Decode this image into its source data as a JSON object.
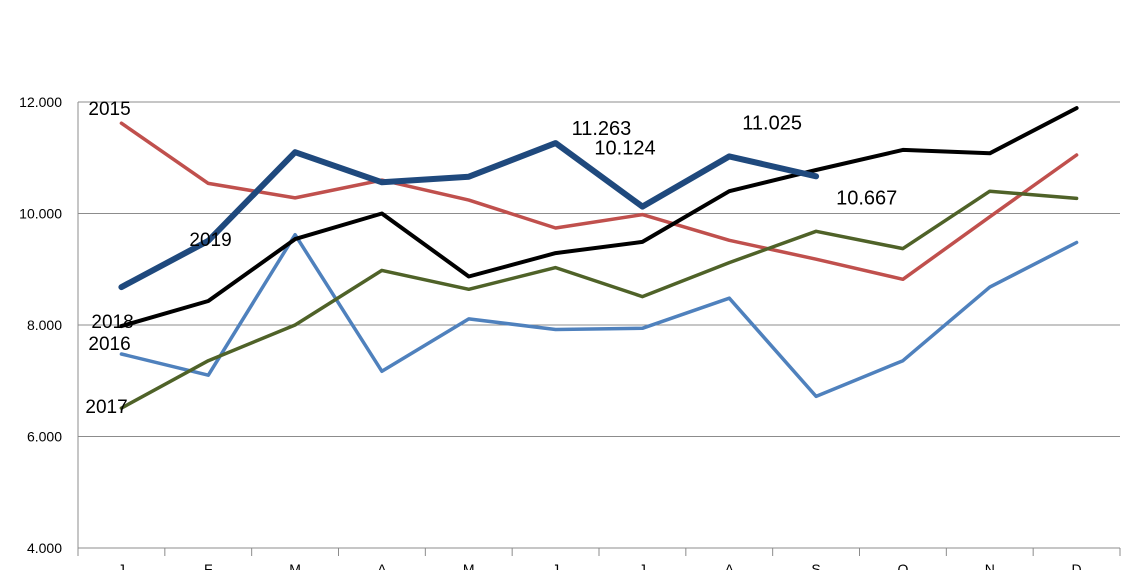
{
  "chart_data": {
    "type": "line",
    "title": "",
    "xlabel": "",
    "ylabel": "",
    "ylim": [
      4000,
      12000
    ],
    "y_ticks": [
      {
        "value": 4000,
        "label": "4.000"
      },
      {
        "value": 6000,
        "label": "6.000"
      },
      {
        "value": 8000,
        "label": "8.000"
      },
      {
        "value": 10000,
        "label": "10.000"
      },
      {
        "value": 12000,
        "label": "12.000"
      }
    ],
    "grid": true,
    "legend": "inline",
    "categories": [
      "J",
      "F",
      "M",
      "A",
      "M",
      "J",
      "J",
      "A",
      "S",
      "O",
      "N",
      "D"
    ],
    "series": [
      {
        "name": "2015",
        "color": "#c0504d",
        "values": [
          11620,
          10540,
          10280,
          10600,
          10240,
          9740,
          9980,
          9520,
          9180,
          8820,
          9940,
          11050
        ]
      },
      {
        "name": "2016",
        "color": "#4f81bd",
        "values": [
          7480,
          7100,
          9620,
          7170,
          8110,
          7920,
          7940,
          8480,
          6720,
          7360,
          8680,
          9480
        ]
      },
      {
        "name": "2017",
        "color": "#4f6228",
        "values": [
          6510,
          7360,
          8000,
          8980,
          8640,
          9030,
          8510,
          9120,
          9680,
          9370,
          10400,
          10270
        ]
      },
      {
        "name": "2018",
        "color": "#000000",
        "values": [
          7980,
          8430,
          9540,
          10000,
          8870,
          9290,
          9490,
          10400,
          10780,
          11140,
          11080,
          11890
        ]
      },
      {
        "name": "2019",
        "color": "#1f497d",
        "values": [
          8680,
          9510,
          11100,
          10560,
          10660,
          11263,
          10124,
          11025,
          10667,
          null,
          null,
          null
        ]
      }
    ],
    "annotations": [
      {
        "text": "11.263",
        "series": "2019",
        "index": 5
      },
      {
        "text": "10.124",
        "series": "2019",
        "index": 6
      },
      {
        "text": "11.025",
        "series": "2019",
        "index": 7
      },
      {
        "text": "10.667",
        "series": "2019",
        "index": 8
      }
    ]
  }
}
